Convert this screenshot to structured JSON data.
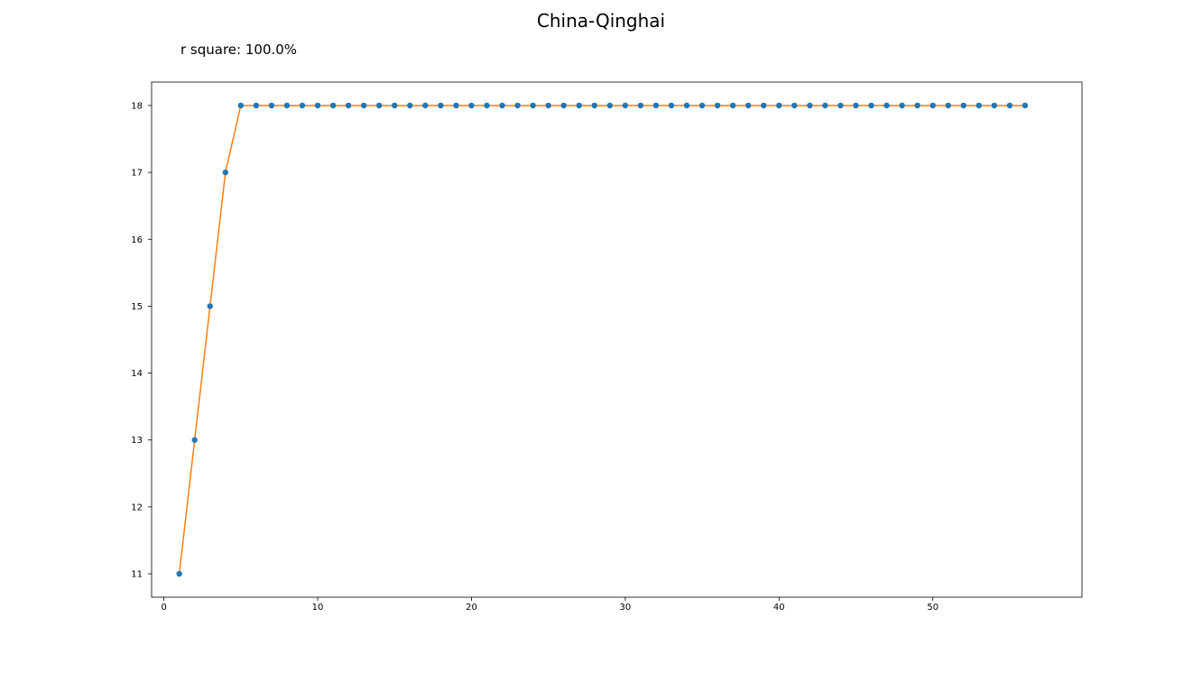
{
  "chart_data": {
    "type": "scatter",
    "title": "China-Qinghai",
    "annotation": "r square: 100.0%",
    "xlabel": "",
    "ylabel": "",
    "xlim": [
      -0.8,
      59.7
    ],
    "ylim": [
      10.65,
      18.35
    ],
    "x_ticks": [
      0,
      10,
      20,
      30,
      40,
      50
    ],
    "y_ticks": [
      11,
      12,
      13,
      14,
      15,
      16,
      17,
      18
    ],
    "grid": false,
    "legend": "none",
    "colors": {
      "points": "#1f77b4",
      "fit_line": "#ff7f0e"
    },
    "series": [
      {
        "kind": "points",
        "x": [
          1,
          2,
          3,
          4,
          5,
          6,
          7,
          8,
          9,
          10,
          11,
          12,
          13,
          14,
          15,
          16,
          17,
          18,
          19,
          20,
          21,
          22,
          23,
          24,
          25,
          26,
          27,
          28,
          29,
          30,
          31,
          32,
          33,
          34,
          35,
          36,
          37,
          38,
          39,
          40,
          41,
          42,
          43,
          44,
          45,
          46,
          47,
          48,
          49,
          50,
          51,
          52,
          53,
          54,
          55,
          56
        ],
        "y": [
          11,
          13,
          15,
          17,
          18,
          18,
          18,
          18,
          18,
          18,
          18,
          18,
          18,
          18,
          18,
          18,
          18,
          18,
          18,
          18,
          18,
          18,
          18,
          18,
          18,
          18,
          18,
          18,
          18,
          18,
          18,
          18,
          18,
          18,
          18,
          18,
          18,
          18,
          18,
          18,
          18,
          18,
          18,
          18,
          18,
          18,
          18,
          18,
          18,
          18,
          18,
          18,
          18,
          18,
          18,
          18
        ]
      },
      {
        "kind": "fit-line",
        "x": [
          1,
          2,
          3,
          4,
          5,
          6,
          7,
          8,
          9,
          10,
          11,
          12,
          13,
          14,
          15,
          16,
          17,
          18,
          19,
          20,
          21,
          22,
          23,
          24,
          25,
          26,
          27,
          28,
          29,
          30,
          31,
          32,
          33,
          34,
          35,
          36,
          37,
          38,
          39,
          40,
          41,
          42,
          43,
          44,
          45,
          46,
          47,
          48,
          49,
          50,
          51,
          52,
          53,
          54,
          55,
          56
        ],
        "y": [
          11,
          13,
          15,
          17,
          18,
          18,
          18,
          18,
          18,
          18,
          18,
          18,
          18,
          18,
          18,
          18,
          18,
          18,
          18,
          18,
          18,
          18,
          18,
          18,
          18,
          18,
          18,
          18,
          18,
          18,
          18,
          18,
          18,
          18,
          18,
          18,
          18,
          18,
          18,
          18,
          18,
          18,
          18,
          18,
          18,
          18,
          18,
          18,
          18,
          18,
          18,
          18,
          18,
          18,
          18,
          18
        ]
      }
    ]
  }
}
